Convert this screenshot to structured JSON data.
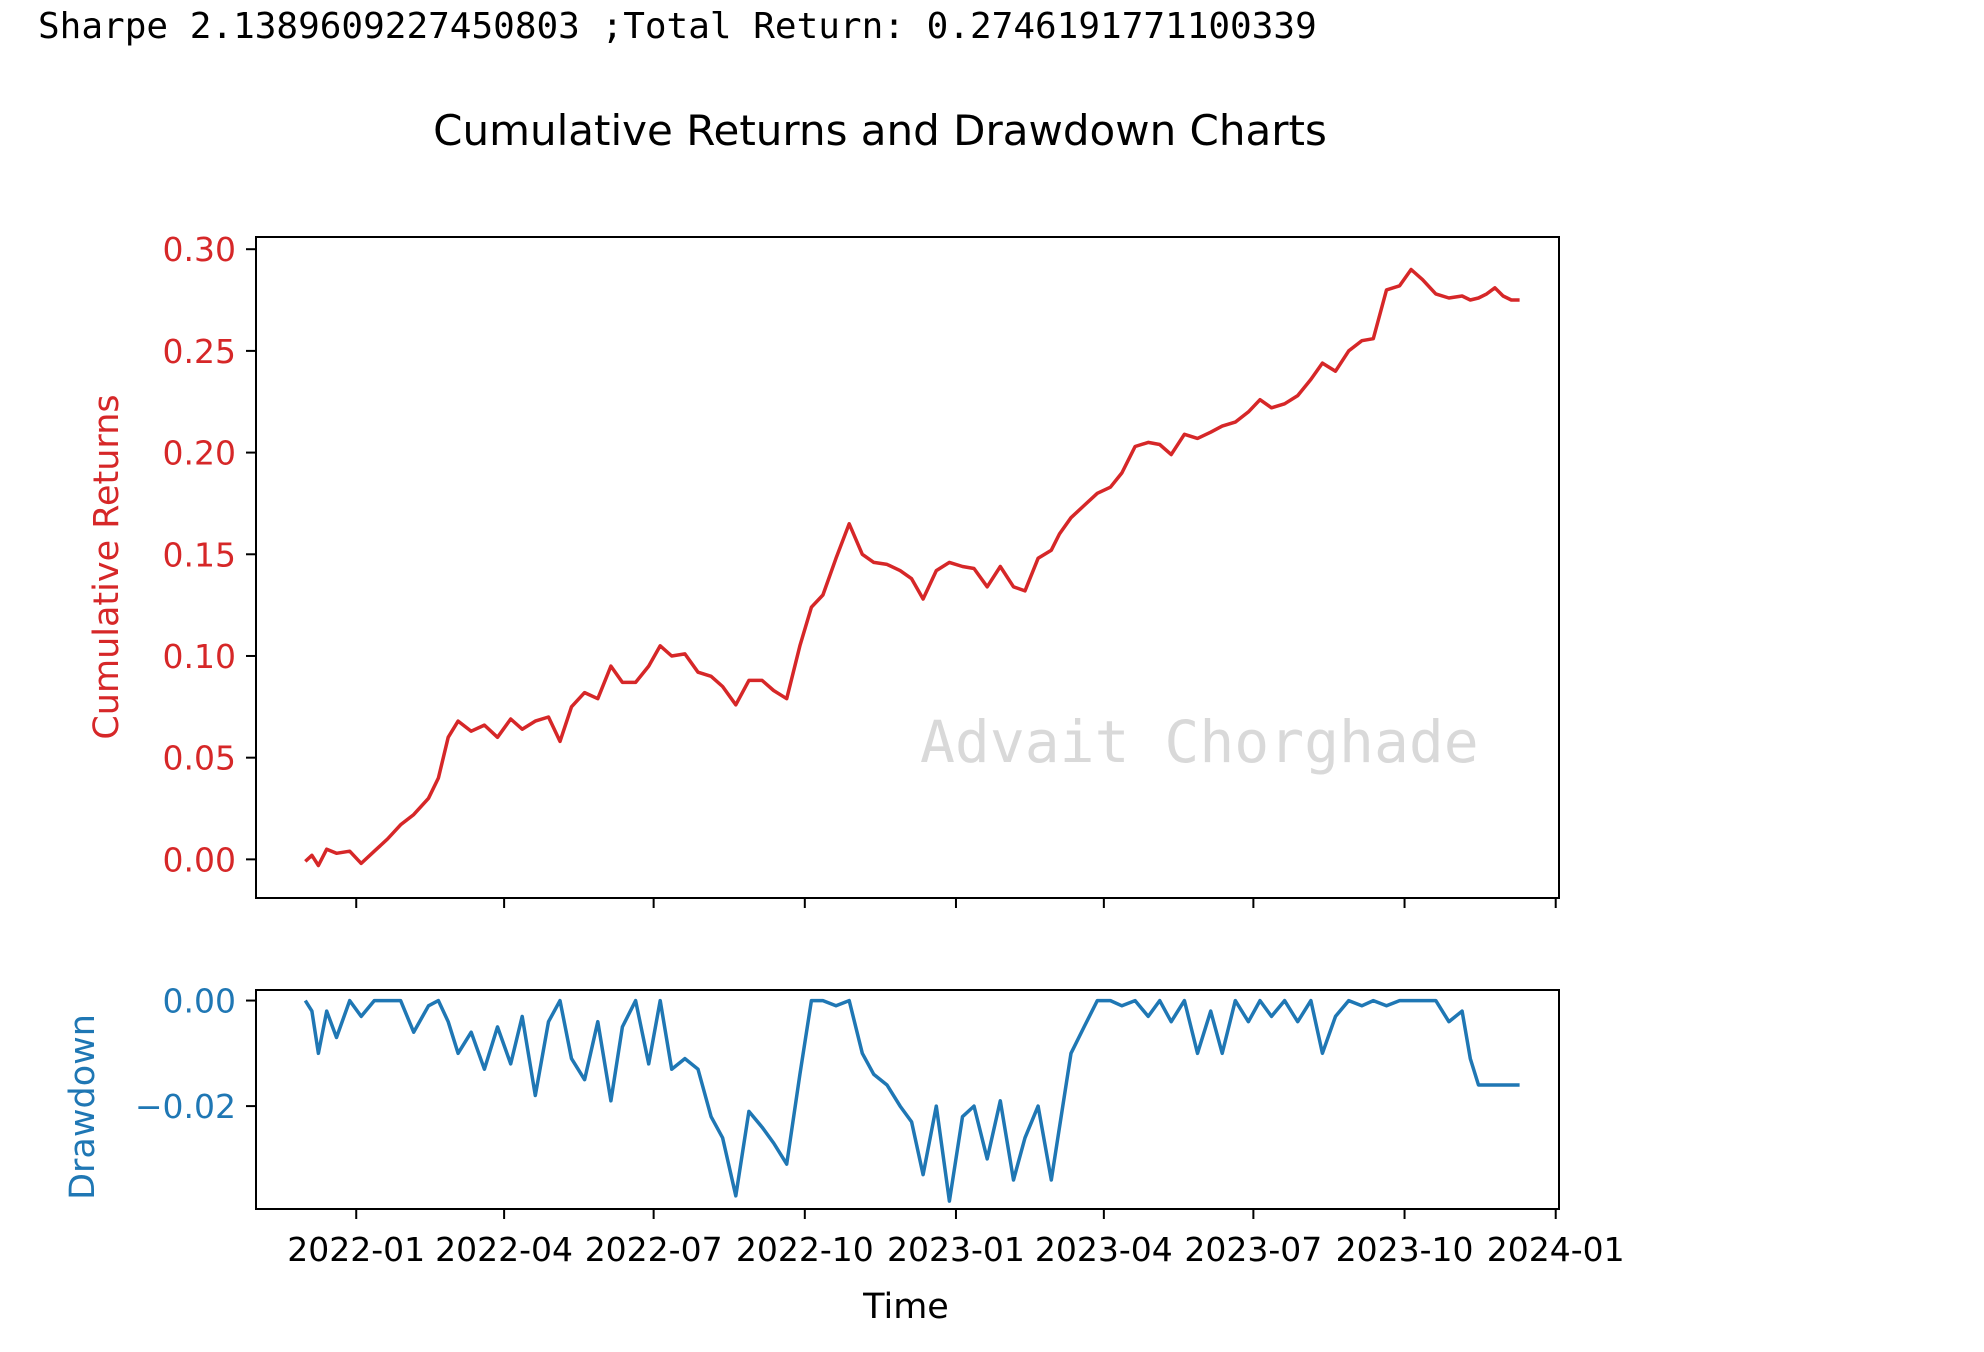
{
  "header": {
    "stats_text": "Sharpe 2.1389609227450803 ;Total Return: 0.2746191771100339"
  },
  "watermark": "Advait Chorghade",
  "colors": {
    "returns": "#d62728",
    "drawdown": "#1f77b4",
    "watermark": "#d9d9d9",
    "axes": "#000000"
  },
  "chart_data": [
    {
      "type": "line",
      "title": "Cumulative Returns and Drawdown Charts",
      "ylabel": "Cumulative Returns",
      "xlabel": "",
      "xlim": [
        "2021-11-01",
        "2024-01-03"
      ],
      "ylim": [
        -0.019,
        0.306
      ],
      "yticks": [
        0.0,
        0.05,
        0.1,
        0.15,
        0.2,
        0.25,
        0.3
      ],
      "ytick_labels": [
        "0.00",
        "0.05",
        "0.10",
        "0.15",
        "0.20",
        "0.25",
        "0.30"
      ],
      "xticks": [
        "2022-01-01",
        "2022-04-01",
        "2022-07-01",
        "2022-10-01",
        "2023-01-01",
        "2023-04-01",
        "2023-07-01",
        "2023-10-01",
        "2024-01-01"
      ],
      "grid": false,
      "series": [
        {
          "color": "#d62728",
          "x": [
            "2021-12-01",
            "2021-12-05",
            "2021-12-09",
            "2021-12-14",
            "2021-12-20",
            "2021-12-28",
            "2022-01-04",
            "2022-01-12",
            "2022-01-20",
            "2022-01-28",
            "2022-02-05",
            "2022-02-14",
            "2022-02-20",
            "2022-02-26",
            "2022-03-04",
            "2022-03-12",
            "2022-03-20",
            "2022-03-28",
            "2022-04-05",
            "2022-04-12",
            "2022-04-20",
            "2022-04-28",
            "2022-05-05",
            "2022-05-12",
            "2022-05-20",
            "2022-05-28",
            "2022-06-05",
            "2022-06-12",
            "2022-06-20",
            "2022-06-28",
            "2022-07-05",
            "2022-07-12",
            "2022-07-20",
            "2022-07-28",
            "2022-08-05",
            "2022-08-12",
            "2022-08-20",
            "2022-08-28",
            "2022-09-05",
            "2022-09-12",
            "2022-09-20",
            "2022-09-28",
            "2022-10-05",
            "2022-10-12",
            "2022-10-20",
            "2022-10-28",
            "2022-11-05",
            "2022-11-12",
            "2022-11-20",
            "2022-11-28",
            "2022-12-05",
            "2022-12-12",
            "2022-12-20",
            "2022-12-28",
            "2023-01-05",
            "2023-01-12",
            "2023-01-20",
            "2023-01-28",
            "2023-02-05",
            "2023-02-12",
            "2023-02-20",
            "2023-02-28",
            "2023-03-05",
            "2023-03-12",
            "2023-03-20",
            "2023-03-28",
            "2023-04-05",
            "2023-04-12",
            "2023-04-20",
            "2023-04-28",
            "2023-05-05",
            "2023-05-12",
            "2023-05-20",
            "2023-05-28",
            "2023-06-05",
            "2023-06-12",
            "2023-06-20",
            "2023-06-28",
            "2023-07-05",
            "2023-07-12",
            "2023-07-20",
            "2023-07-28",
            "2023-08-05",
            "2023-08-12",
            "2023-08-20",
            "2023-08-28",
            "2023-09-05",
            "2023-09-12",
            "2023-09-20",
            "2023-09-28",
            "2023-10-05",
            "2023-10-12",
            "2023-10-20",
            "2023-10-28",
            "2023-11-05",
            "2023-11-10",
            "2023-11-15",
            "2023-11-20",
            "2023-11-25",
            "2023-11-30",
            "2023-12-05",
            "2023-12-10"
          ],
          "values": [
            -0.001,
            0.002,
            -0.003,
            0.005,
            0.003,
            0.004,
            -0.002,
            0.004,
            0.01,
            0.017,
            0.022,
            0.03,
            0.04,
            0.06,
            0.068,
            0.063,
            0.066,
            0.06,
            0.069,
            0.064,
            0.068,
            0.07,
            0.058,
            0.075,
            0.082,
            0.079,
            0.095,
            0.087,
            0.087,
            0.095,
            0.105,
            0.1,
            0.101,
            0.092,
            0.09,
            0.085,
            0.076,
            0.088,
            0.088,
            0.083,
            0.079,
            0.105,
            0.124,
            0.13,
            0.148,
            0.165,
            0.15,
            0.146,
            0.145,
            0.142,
            0.138,
            0.128,
            0.142,
            0.146,
            0.144,
            0.143,
            0.134,
            0.144,
            0.134,
            0.132,
            0.148,
            0.152,
            0.16,
            0.168,
            0.174,
            0.18,
            0.183,
            0.19,
            0.203,
            0.205,
            0.204,
            0.199,
            0.209,
            0.207,
            0.21,
            0.213,
            0.215,
            0.22,
            0.226,
            0.222,
            0.224,
            0.228,
            0.236,
            0.244,
            0.24,
            0.25,
            0.255,
            0.256,
            0.28,
            0.282,
            0.29,
            0.285,
            0.278,
            0.276,
            0.277,
            0.275,
            0.276,
            0.278,
            0.281,
            0.277,
            0.275,
            0.275
          ]
        }
      ]
    },
    {
      "type": "line",
      "title": "",
      "ylabel": "Drawdown",
      "xlabel": "Time",
      "xlim": [
        "2021-11-01",
        "2024-01-03"
      ],
      "ylim": [
        -0.0395,
        0.002
      ],
      "yticks": [
        0.0,
        -0.02
      ],
      "ytick_labels": [
        "0.00",
        "−0.02"
      ],
      "xticks": [
        "2022-01-01",
        "2022-04-01",
        "2022-07-01",
        "2022-10-01",
        "2023-01-01",
        "2023-04-01",
        "2023-07-01",
        "2023-10-01",
        "2024-01-01"
      ],
      "xtick_labels": [
        "2022-01",
        "2022-04",
        "2022-07",
        "2022-10",
        "2023-01",
        "2023-04",
        "2023-07",
        "2023-10",
        "2024-01"
      ],
      "grid": false,
      "series": [
        {
          "color": "#1f77b4",
          "x": [
            "2021-12-01",
            "2021-12-05",
            "2021-12-09",
            "2021-12-14",
            "2021-12-20",
            "2021-12-28",
            "2022-01-04",
            "2022-01-12",
            "2022-01-20",
            "2022-01-28",
            "2022-02-05",
            "2022-02-14",
            "2022-02-20",
            "2022-02-26",
            "2022-03-04",
            "2022-03-12",
            "2022-03-20",
            "2022-03-28",
            "2022-04-05",
            "2022-04-12",
            "2022-04-20",
            "2022-04-28",
            "2022-05-05",
            "2022-05-12",
            "2022-05-20",
            "2022-05-28",
            "2022-06-05",
            "2022-06-12",
            "2022-06-20",
            "2022-06-28",
            "2022-07-05",
            "2022-07-12",
            "2022-07-20",
            "2022-07-28",
            "2022-08-05",
            "2022-08-12",
            "2022-08-20",
            "2022-08-28",
            "2022-09-05",
            "2022-09-12",
            "2022-09-20",
            "2022-09-28",
            "2022-10-05",
            "2022-10-12",
            "2022-10-20",
            "2022-10-28",
            "2022-11-05",
            "2022-11-12",
            "2022-11-20",
            "2022-11-28",
            "2022-12-05",
            "2022-12-12",
            "2022-12-20",
            "2022-12-28",
            "2023-01-05",
            "2023-01-12",
            "2023-01-20",
            "2023-01-28",
            "2023-02-05",
            "2023-02-12",
            "2023-02-20",
            "2023-02-28",
            "2023-03-05",
            "2023-03-12",
            "2023-03-20",
            "2023-03-28",
            "2023-04-05",
            "2023-04-12",
            "2023-04-20",
            "2023-04-28",
            "2023-05-05",
            "2023-05-12",
            "2023-05-20",
            "2023-05-28",
            "2023-06-05",
            "2023-06-12",
            "2023-06-20",
            "2023-06-28",
            "2023-07-05",
            "2023-07-12",
            "2023-07-20",
            "2023-07-28",
            "2023-08-05",
            "2023-08-12",
            "2023-08-20",
            "2023-08-28",
            "2023-09-05",
            "2023-09-12",
            "2023-09-20",
            "2023-09-28",
            "2023-10-05",
            "2023-10-12",
            "2023-10-20",
            "2023-10-28",
            "2023-11-05",
            "2023-11-10",
            "2023-11-15",
            "2023-11-20",
            "2023-11-25",
            "2023-11-30",
            "2023-12-05",
            "2023-12-10"
          ],
          "values": [
            0.0,
            -0.002,
            -0.01,
            -0.002,
            -0.007,
            0.0,
            -0.003,
            0.0,
            0.0,
            0.0,
            -0.006,
            -0.001,
            0.0,
            -0.004,
            -0.01,
            -0.006,
            -0.013,
            -0.005,
            -0.012,
            -0.003,
            -0.018,
            -0.004,
            0.0,
            -0.011,
            -0.015,
            -0.004,
            -0.019,
            -0.005,
            0.0,
            -0.012,
            0.0,
            -0.013,
            -0.011,
            -0.013,
            -0.022,
            -0.026,
            -0.037,
            -0.021,
            -0.024,
            -0.027,
            -0.031,
            -0.014,
            0.0,
            0.0,
            -0.001,
            0.0,
            -0.01,
            -0.014,
            -0.016,
            -0.02,
            -0.023,
            -0.033,
            -0.02,
            -0.038,
            -0.022,
            -0.02,
            -0.03,
            -0.019,
            -0.034,
            -0.026,
            -0.02,
            -0.034,
            -0.024,
            -0.01,
            -0.005,
            0.0,
            0.0,
            -0.001,
            0.0,
            -0.003,
            0.0,
            -0.004,
            0.0,
            -0.01,
            -0.002,
            -0.01,
            0.0,
            -0.004,
            0.0,
            -0.003,
            0.0,
            -0.004,
            0.0,
            -0.01,
            -0.003,
            0.0,
            -0.001,
            0.0,
            -0.001,
            0.0,
            0.0,
            0.0,
            0.0,
            -0.004,
            -0.002,
            -0.011,
            -0.016,
            -0.016,
            -0.016,
            -0.016,
            -0.016,
            -0.016
          ]
        }
      ]
    }
  ]
}
